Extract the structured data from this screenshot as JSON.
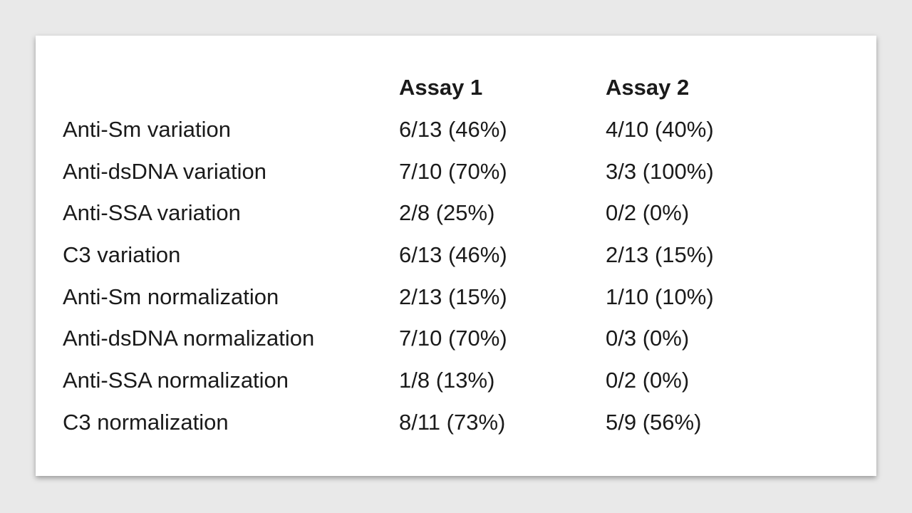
{
  "page": {
    "background_color": "#e9e9e9",
    "card_color": "#ffffff",
    "text_color": "#1a1a1a"
  },
  "table": {
    "columns": [
      "",
      "Assay 1",
      "Assay 2"
    ],
    "rows": [
      {
        "label": "Anti-Sm variation",
        "assay1": "6/13 (46%)",
        "assay2": "4/10 (40%)"
      },
      {
        "label": "Anti-dsDNA variation",
        "assay1": "7/10 (70%)",
        "assay2": "3/3 (100%)"
      },
      {
        "label": "Anti-SSA variation",
        "assay1": "2/8 (25%)",
        "assay2": "0/2 (0%)"
      },
      {
        "label": "C3 variation",
        "assay1": "6/13 (46%)",
        "assay2": "2/13 (15%)"
      },
      {
        "label": "Anti-Sm normalization",
        "assay1": "2/13 (15%)",
        "assay2": "1/10 (10%)"
      },
      {
        "label": "Anti-dsDNA normalization",
        "assay1": "7/10 (70%)",
        "assay2": "0/3 (0%)"
      },
      {
        "label": "Anti-SSA normalization",
        "assay1": "1/8 (13%)",
        "assay2": "0/2 (0%)"
      },
      {
        "label": "C3 normalization",
        "assay1": "8/11 (73%)",
        "assay2": "5/9 (56%)"
      }
    ]
  }
}
